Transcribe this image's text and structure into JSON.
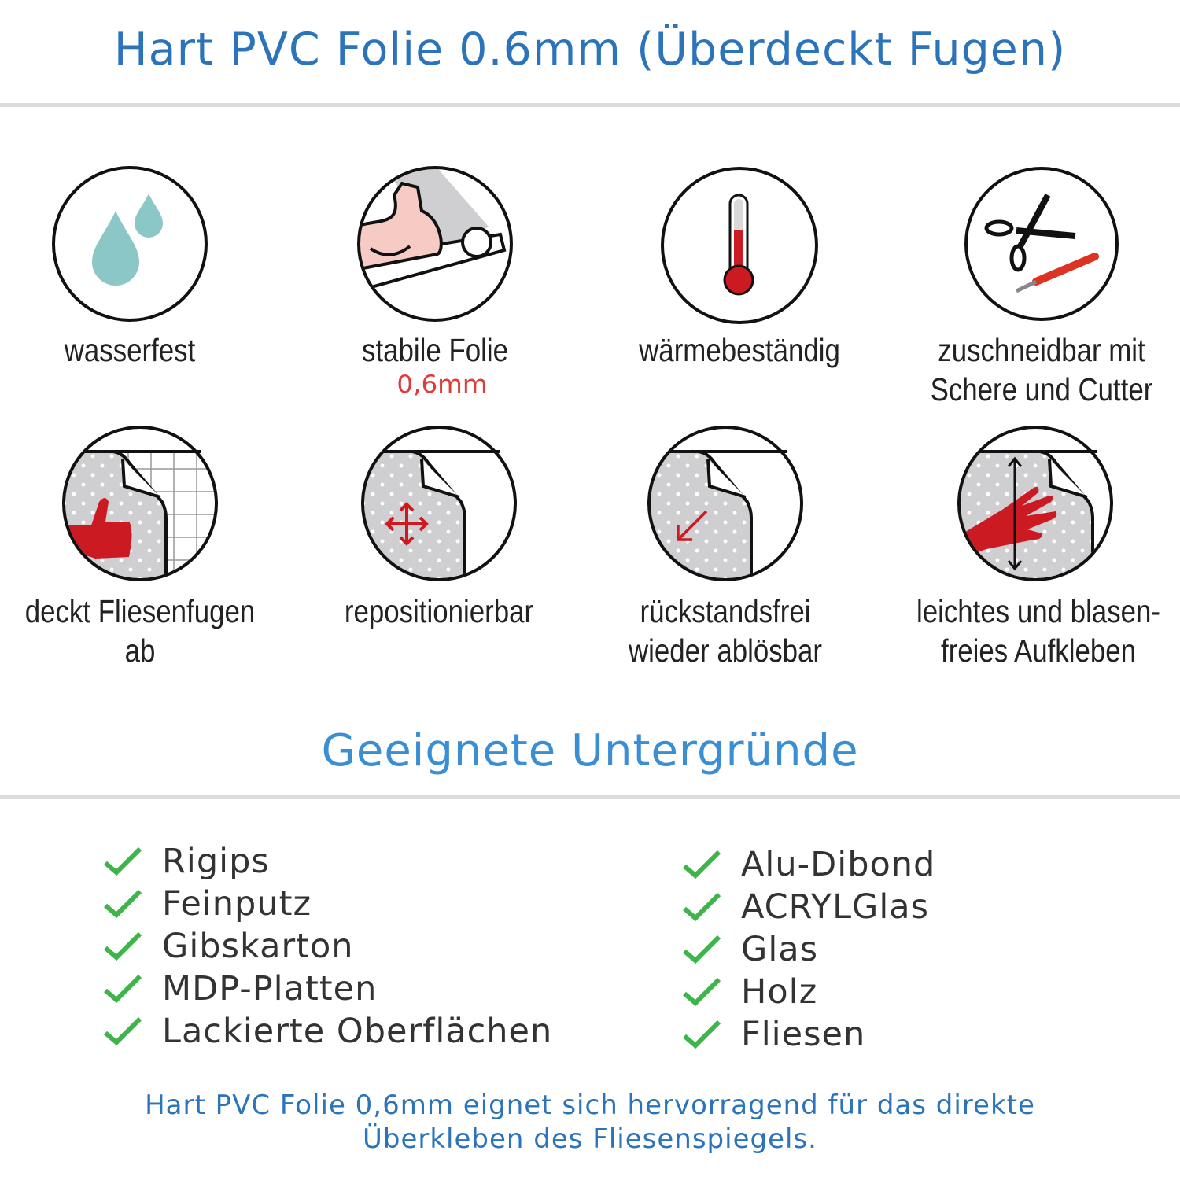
{
  "title": "Hart PVC Folie 0.6mm (Überdeckt Fugen)",
  "features": [
    {
      "icon": "water-drops-icon",
      "label": "wasserfest"
    },
    {
      "icon": "strong-arm-film-roll-icon",
      "label": "stabile Folie",
      "sublabel": "0,6mm"
    },
    {
      "icon": "thermometer-icon",
      "label": "wärmebeständig"
    },
    {
      "icon": "scissors-cutter-icon",
      "label_lines": [
        "zuschneidbar mit",
        "Schere und Cutter"
      ]
    },
    {
      "icon": "thumbs-up-film-icon",
      "label": "deckt Fliesenfugen ab"
    },
    {
      "icon": "move-arrows-film-icon",
      "label": "repositionierbar"
    },
    {
      "icon": "peel-arrow-film-icon",
      "label_lines": [
        "rückstandsfrei",
        "wieder ablösbar"
      ]
    },
    {
      "icon": "hand-smoothing-film-icon",
      "label_lines": [
        "leichtes und blasen-",
        "freies Aufkleben"
      ]
    }
  ],
  "surfaces_heading": "Geeignete Untergründe",
  "surfaces_left": [
    "Rigips",
    "Feinputz",
    "Gibskarton",
    "MDP-Platten",
    "Lackierte Oberflächen"
  ],
  "surfaces_right": [
    "Alu-Dibond",
    "ACRYLGlas",
    "Glas",
    "Holz",
    "Fliesen"
  ],
  "footer_lines": [
    "Hart PVC Folie 0,6mm eignet sich hervorragend für das direkte",
    "Überkleben des Fliesenspiegels."
  ],
  "colors": {
    "heading": "#2c74b9",
    "subheading": "#3a8ed3",
    "check": "#3db54a",
    "accent_red": "#cc1a22",
    "drop": "#8cc7c7",
    "film_gray": "#cfcfd1"
  }
}
